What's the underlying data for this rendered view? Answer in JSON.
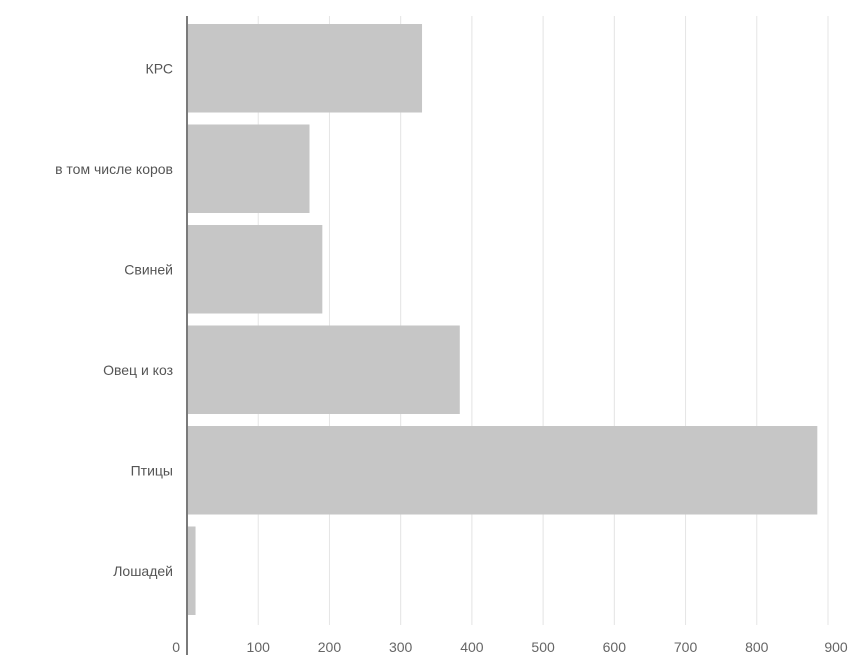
{
  "chart_data": {
    "type": "bar",
    "orientation": "horizontal",
    "title": "",
    "xlabel": "",
    "ylabel": "",
    "categories": [
      "КРС",
      "в том числе коров",
      "Свиней",
      "Овец и коз",
      "Птицы",
      "Лошадей"
    ],
    "values": [
      330,
      172,
      190,
      383,
      885,
      12
    ],
    "xlim": [
      0,
      900
    ],
    "xticks": [
      0,
      100,
      200,
      300,
      400,
      500,
      600,
      700,
      800,
      900
    ],
    "xtick_labels": [
      "0",
      "100",
      "200",
      "300",
      "400",
      "500",
      "600",
      "700",
      "800",
      "900"
    ],
    "grid": false,
    "legend": "none",
    "colors": {
      "bar": "#c6c6c6",
      "axis": "#7a7a7a",
      "text": "#555555"
    }
  }
}
